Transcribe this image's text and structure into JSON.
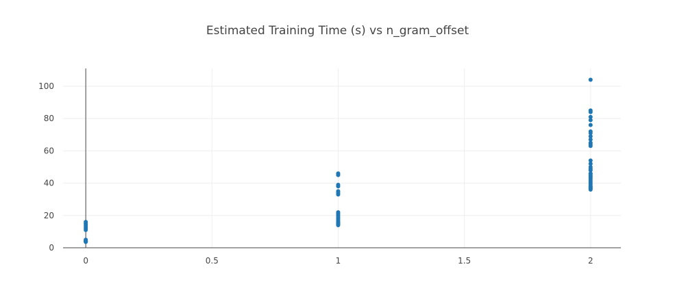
{
  "chart_data": {
    "type": "scatter",
    "title": "Estimated Training Time (s) vs n_gram_offset",
    "xlabel": "",
    "ylabel": "",
    "xlim": [
      -0.09,
      2.12
    ],
    "ylim": [
      0,
      111
    ],
    "x_ticks": [
      0,
      0.5,
      1,
      1.5,
      2
    ],
    "x_tick_labels": [
      "0",
      "0.5",
      "1",
      "1.5",
      "2"
    ],
    "y_ticks": [
      0,
      20,
      40,
      60,
      80,
      100
    ],
    "y_tick_labels": [
      "0",
      "20",
      "40",
      "60",
      "80",
      "100"
    ],
    "grid": true,
    "marker_color": "#1f77b4",
    "series": [
      {
        "x": [
          0,
          0,
          0,
          0,
          0,
          0,
          0,
          0,
          0,
          0,
          0,
          0,
          1,
          1,
          1,
          1,
          1,
          1,
          1,
          1,
          1,
          1,
          1,
          1,
          1,
          1,
          1,
          1,
          1,
          1,
          2,
          2,
          2,
          2,
          2,
          2,
          2,
          2,
          2,
          2,
          2,
          2,
          2,
          2,
          2,
          2,
          2,
          2,
          2,
          2,
          2,
          2,
          2,
          2,
          2,
          2,
          2,
          2,
          2,
          2,
          2,
          2
        ],
        "y": [
          16,
          15,
          14,
          13,
          12,
          11,
          5,
          4.5,
          4.2,
          4,
          3.8,
          3.6,
          46,
          45,
          39,
          38,
          35,
          34,
          33,
          22,
          21,
          20,
          19,
          18,
          17,
          16,
          15.5,
          15,
          14.5,
          14,
          104,
          85,
          84,
          81,
          79,
          76,
          72,
          71,
          69,
          67,
          65,
          64,
          63,
          54,
          52,
          50,
          48,
          46,
          44,
          43,
          42,
          41,
          40,
          39,
          38,
          37.5,
          37,
          36.5,
          36,
          44.5,
          45.5,
          49
        ],
        "marker_size": 6
      }
    ]
  }
}
